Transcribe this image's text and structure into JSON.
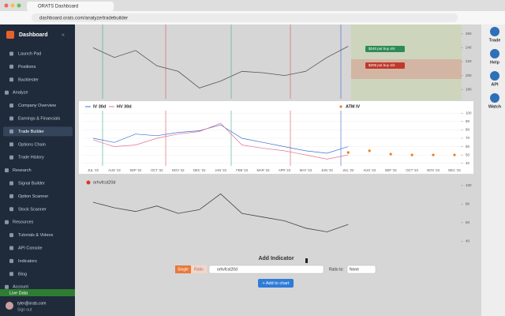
{
  "browser": {
    "tab": "ORATS Dashboard",
    "url": "dashboard.orats.com/analyze/tradebuilder"
  },
  "sidebar": {
    "brand": "Dashboard",
    "items": [
      "Launch Pad",
      "Positions",
      "Backtester",
      "Analyze",
      "Company Overview",
      "Earnings & Financials",
      "Trade Builder",
      "Options Chain",
      "Trade History",
      "Research",
      "Signal Builder",
      "Option Scanner",
      "Stock Scanner",
      "Resources",
      "Tutorials & Videos",
      "API Console",
      "Indicators",
      "Blog",
      "Account"
    ],
    "live": "Live Data",
    "user": "tyler@orats.com",
    "signout": "Sign out"
  },
  "right_rail": [
    "Trade",
    "Help",
    "API",
    "Watch"
  ],
  "add_indicator": {
    "title": "Add Indicator",
    "modes": [
      "Single",
      "Ratio"
    ],
    "search": "orhvfcst20d",
    "ratio_label": "Ratio to:",
    "ratio_value": "None",
    "button": "+ Add to chart"
  },
  "chart_data": [
    {
      "type": "line",
      "color": "#555555",
      "values": [
        240,
        226,
        236,
        214,
        206,
        182,
        192,
        206,
        204,
        200,
        206,
        226,
        242
      ],
      "ylim": [
        170,
        270
      ],
      "yticks": [
        260,
        240,
        220,
        200,
        180
      ],
      "annotations": [
        "$240 put buy 4/4",
        "$209 put buy 4/4"
      ]
    },
    {
      "type": "line",
      "categories": [
        "JUL '22",
        "AUG '22",
        "SEP '22",
        "OCT '22",
        "NOV '22",
        "DEC '22",
        "JAN '23",
        "FEB '23",
        "MAR '23",
        "APR '23",
        "MAY '23",
        "JUN '23",
        "JUL '23",
        "AUG '23",
        "SEP '23",
        "OCT '23",
        "NOV '23",
        "DEC '23"
      ],
      "series": [
        {
          "name": "IV 30d",
          "color": "#3b6fd8",
          "values": [
            70,
            65,
            75,
            73,
            77,
            79,
            86,
            70,
            65,
            60,
            55,
            52,
            60,
            null,
            null,
            null,
            null,
            null
          ]
        },
        {
          "name": "HV 30d",
          "color": "#e8708e",
          "values": [
            68,
            60,
            62,
            70,
            75,
            78,
            88,
            62,
            58,
            55,
            50,
            45,
            50,
            null,
            null,
            null,
            null,
            null
          ]
        },
        {
          "name": "ATM IV",
          "color": "#f07c1e",
          "type": "scatter",
          "values": [
            null,
            null,
            null,
            null,
            null,
            null,
            null,
            null,
            null,
            null,
            null,
            null,
            53,
            55,
            51,
            50,
            50,
            50
          ]
        }
      ],
      "ylim": [
        35,
        105
      ],
      "yticks": [
        100,
        90,
        80,
        70,
        60,
        50,
        40
      ]
    },
    {
      "type": "line",
      "title": "orhvfcst20d",
      "color": "#444444",
      "values": [
        82,
        76,
        72,
        78,
        70,
        74,
        91,
        70,
        66,
        62,
        54,
        50,
        58
      ],
      "ylim": [
        30,
        105
      ],
      "yticks": [
        100,
        80,
        60,
        40
      ]
    }
  ]
}
